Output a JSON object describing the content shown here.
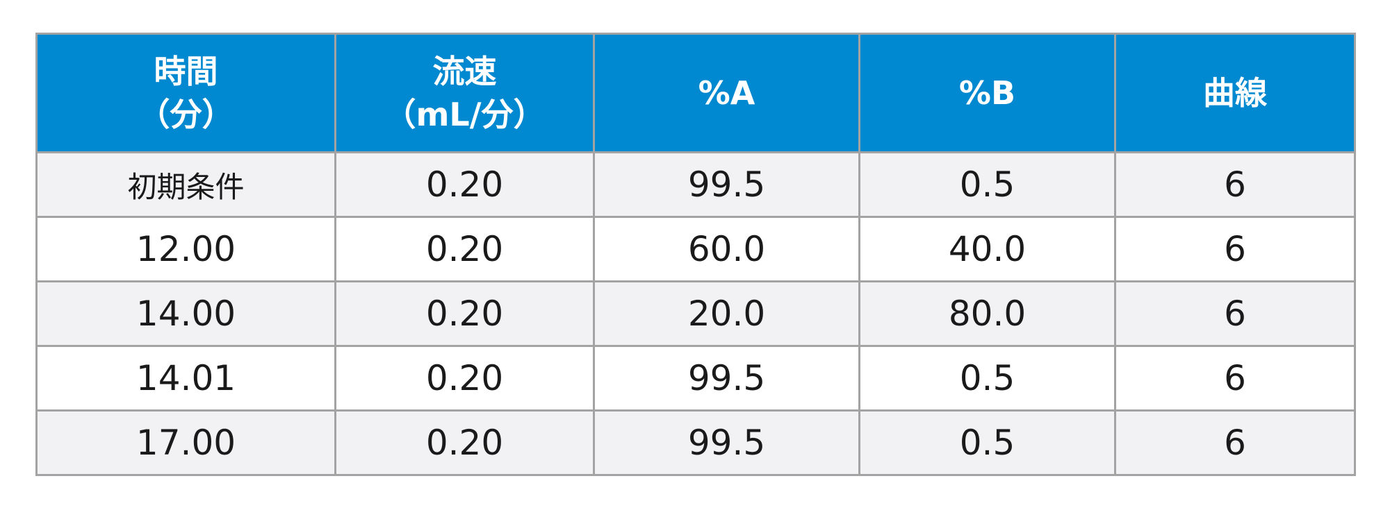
{
  "table": {
    "header": [
      [
        "時間",
        "（分）"
      ],
      [
        "流速",
        "（mL/分）"
      ],
      [
        "%A"
      ],
      [
        "%B"
      ],
      [
        "曲線"
      ]
    ],
    "rows": [
      [
        "初期条件",
        "0.20",
        "99.5",
        "0.5",
        "6"
      ],
      [
        "12.00",
        "0.20",
        "60.0",
        "40.0",
        "6"
      ],
      [
        "14.00",
        "0.20",
        "20.0",
        "80.0",
        "6"
      ],
      [
        "14.01",
        "0.20",
        "99.5",
        "0.5",
        "6"
      ],
      [
        "17.00",
        "0.20",
        "99.5",
        "0.5",
        "6"
      ]
    ]
  }
}
